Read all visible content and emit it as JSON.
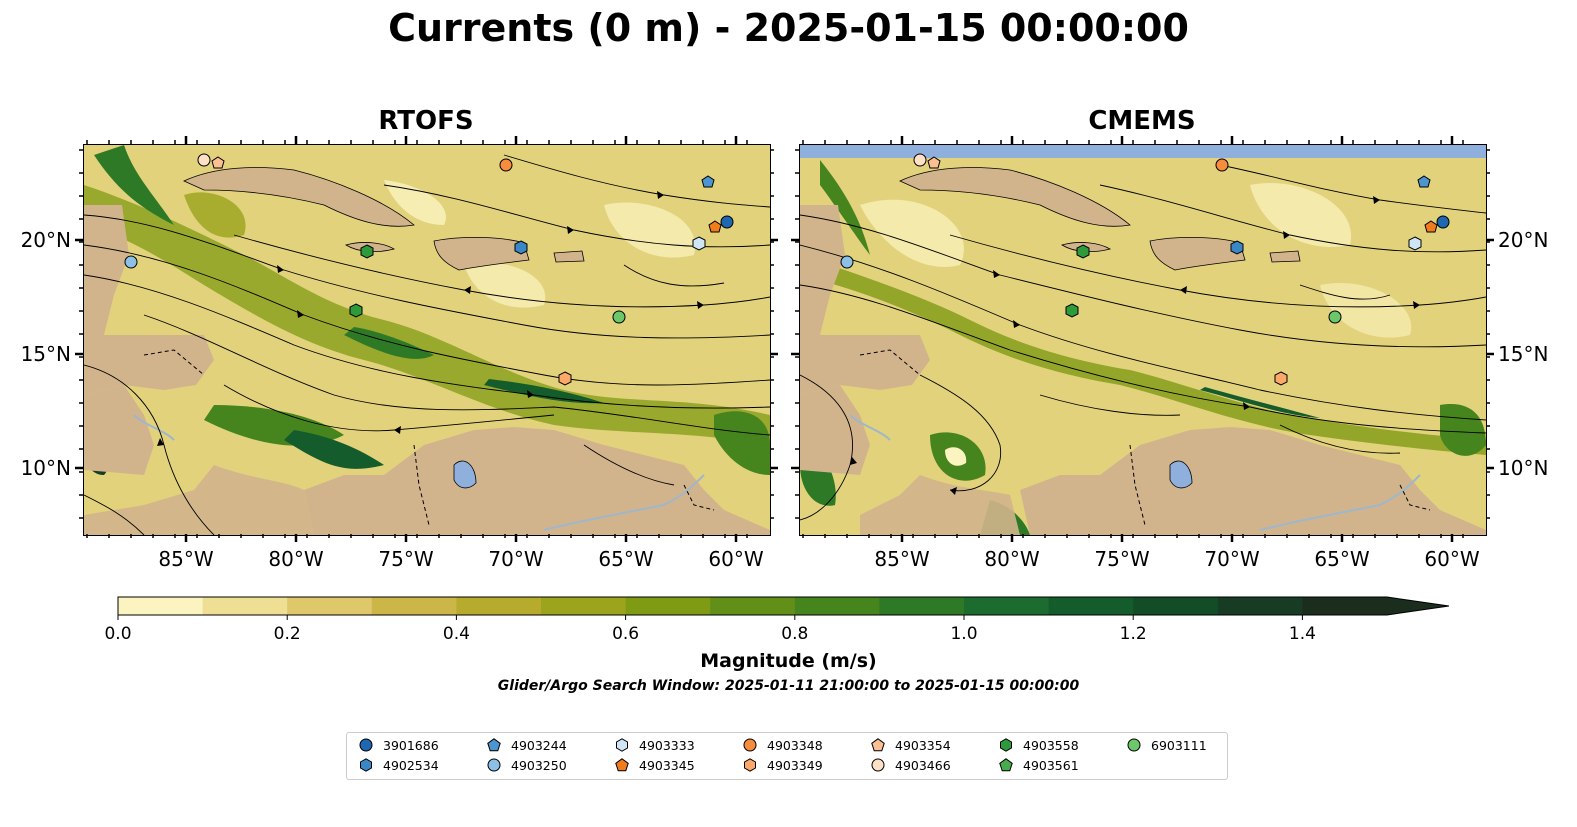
{
  "title": "Currents (0 m) - 2025-01-15 00:00:00",
  "panels": [
    {
      "title": "RTOFS"
    },
    {
      "title": "CMEMS"
    }
  ],
  "x_ticks": [
    "85°W",
    "80°W",
    "75°W",
    "70°W",
    "65°W",
    "60°W"
  ],
  "y_ticks": [
    "20°N",
    "15°N",
    "10°N"
  ],
  "colorbar": {
    "label": "Magnitude (m/s)",
    "tick_labels": [
      "0.0",
      "0.2",
      "0.4",
      "0.6",
      "0.8",
      "1.0",
      "1.2",
      "1.4"
    ],
    "levels": [
      0.0,
      0.1,
      0.2,
      0.3,
      0.4,
      0.5,
      0.6,
      0.7,
      0.8,
      0.9,
      1.0,
      1.1,
      1.2,
      1.3,
      1.4,
      1.5
    ],
    "extend": "max",
    "colors": [
      "#fbf4c0",
      "#eedf95",
      "#dec86a",
      "#cdb648",
      "#b6ab2c",
      "#9ba41c",
      "#7f9b14",
      "#628f18",
      "#46841e",
      "#2e7926",
      "#1b6c2e",
      "#145c2c",
      "#124d28",
      "#173c23",
      "#1b2d1d"
    ]
  },
  "search_window": "Glider/Argo Search Window: 2025-01-11 21:00:00 to 2025-01-15 00:00:00",
  "colors": {
    "land": "#d2b48c",
    "lake": "#8fb0dc",
    "river": "#9fb6cc",
    "nodata": "#8fb0dc"
  },
  "legend": [
    {
      "id": "3901686",
      "marker": "circle",
      "color": "#1f67b0"
    },
    {
      "id": "4902534",
      "marker": "hexagon",
      "color": "#3a87c8"
    },
    {
      "id": "4903244",
      "marker": "pentagon",
      "color": "#4c95d0"
    },
    {
      "id": "4903250",
      "marker": "circle",
      "color": "#8cc0e6"
    },
    {
      "id": "4903333",
      "marker": "hexagon",
      "color": "#cfe6f7"
    },
    {
      "id": "4903345",
      "marker": "pentagon",
      "color": "#f07c1c"
    },
    {
      "id": "4903348",
      "marker": "circle",
      "color": "#f58d3c"
    },
    {
      "id": "4903349",
      "marker": "hexagon",
      "color": "#fba868"
    },
    {
      "id": "4903354",
      "marker": "pentagon",
      "color": "#fbbf93"
    },
    {
      "id": "4903466",
      "marker": "circle",
      "color": "#fde0c6"
    },
    {
      "id": "4903558",
      "marker": "hexagon",
      "color": "#2e9a3a"
    },
    {
      "id": "4903561",
      "marker": "pentagon",
      "color": "#47ad4c"
    },
    {
      "id": "6903111",
      "marker": "circle",
      "color": "#6cc76a"
    }
  ]
}
